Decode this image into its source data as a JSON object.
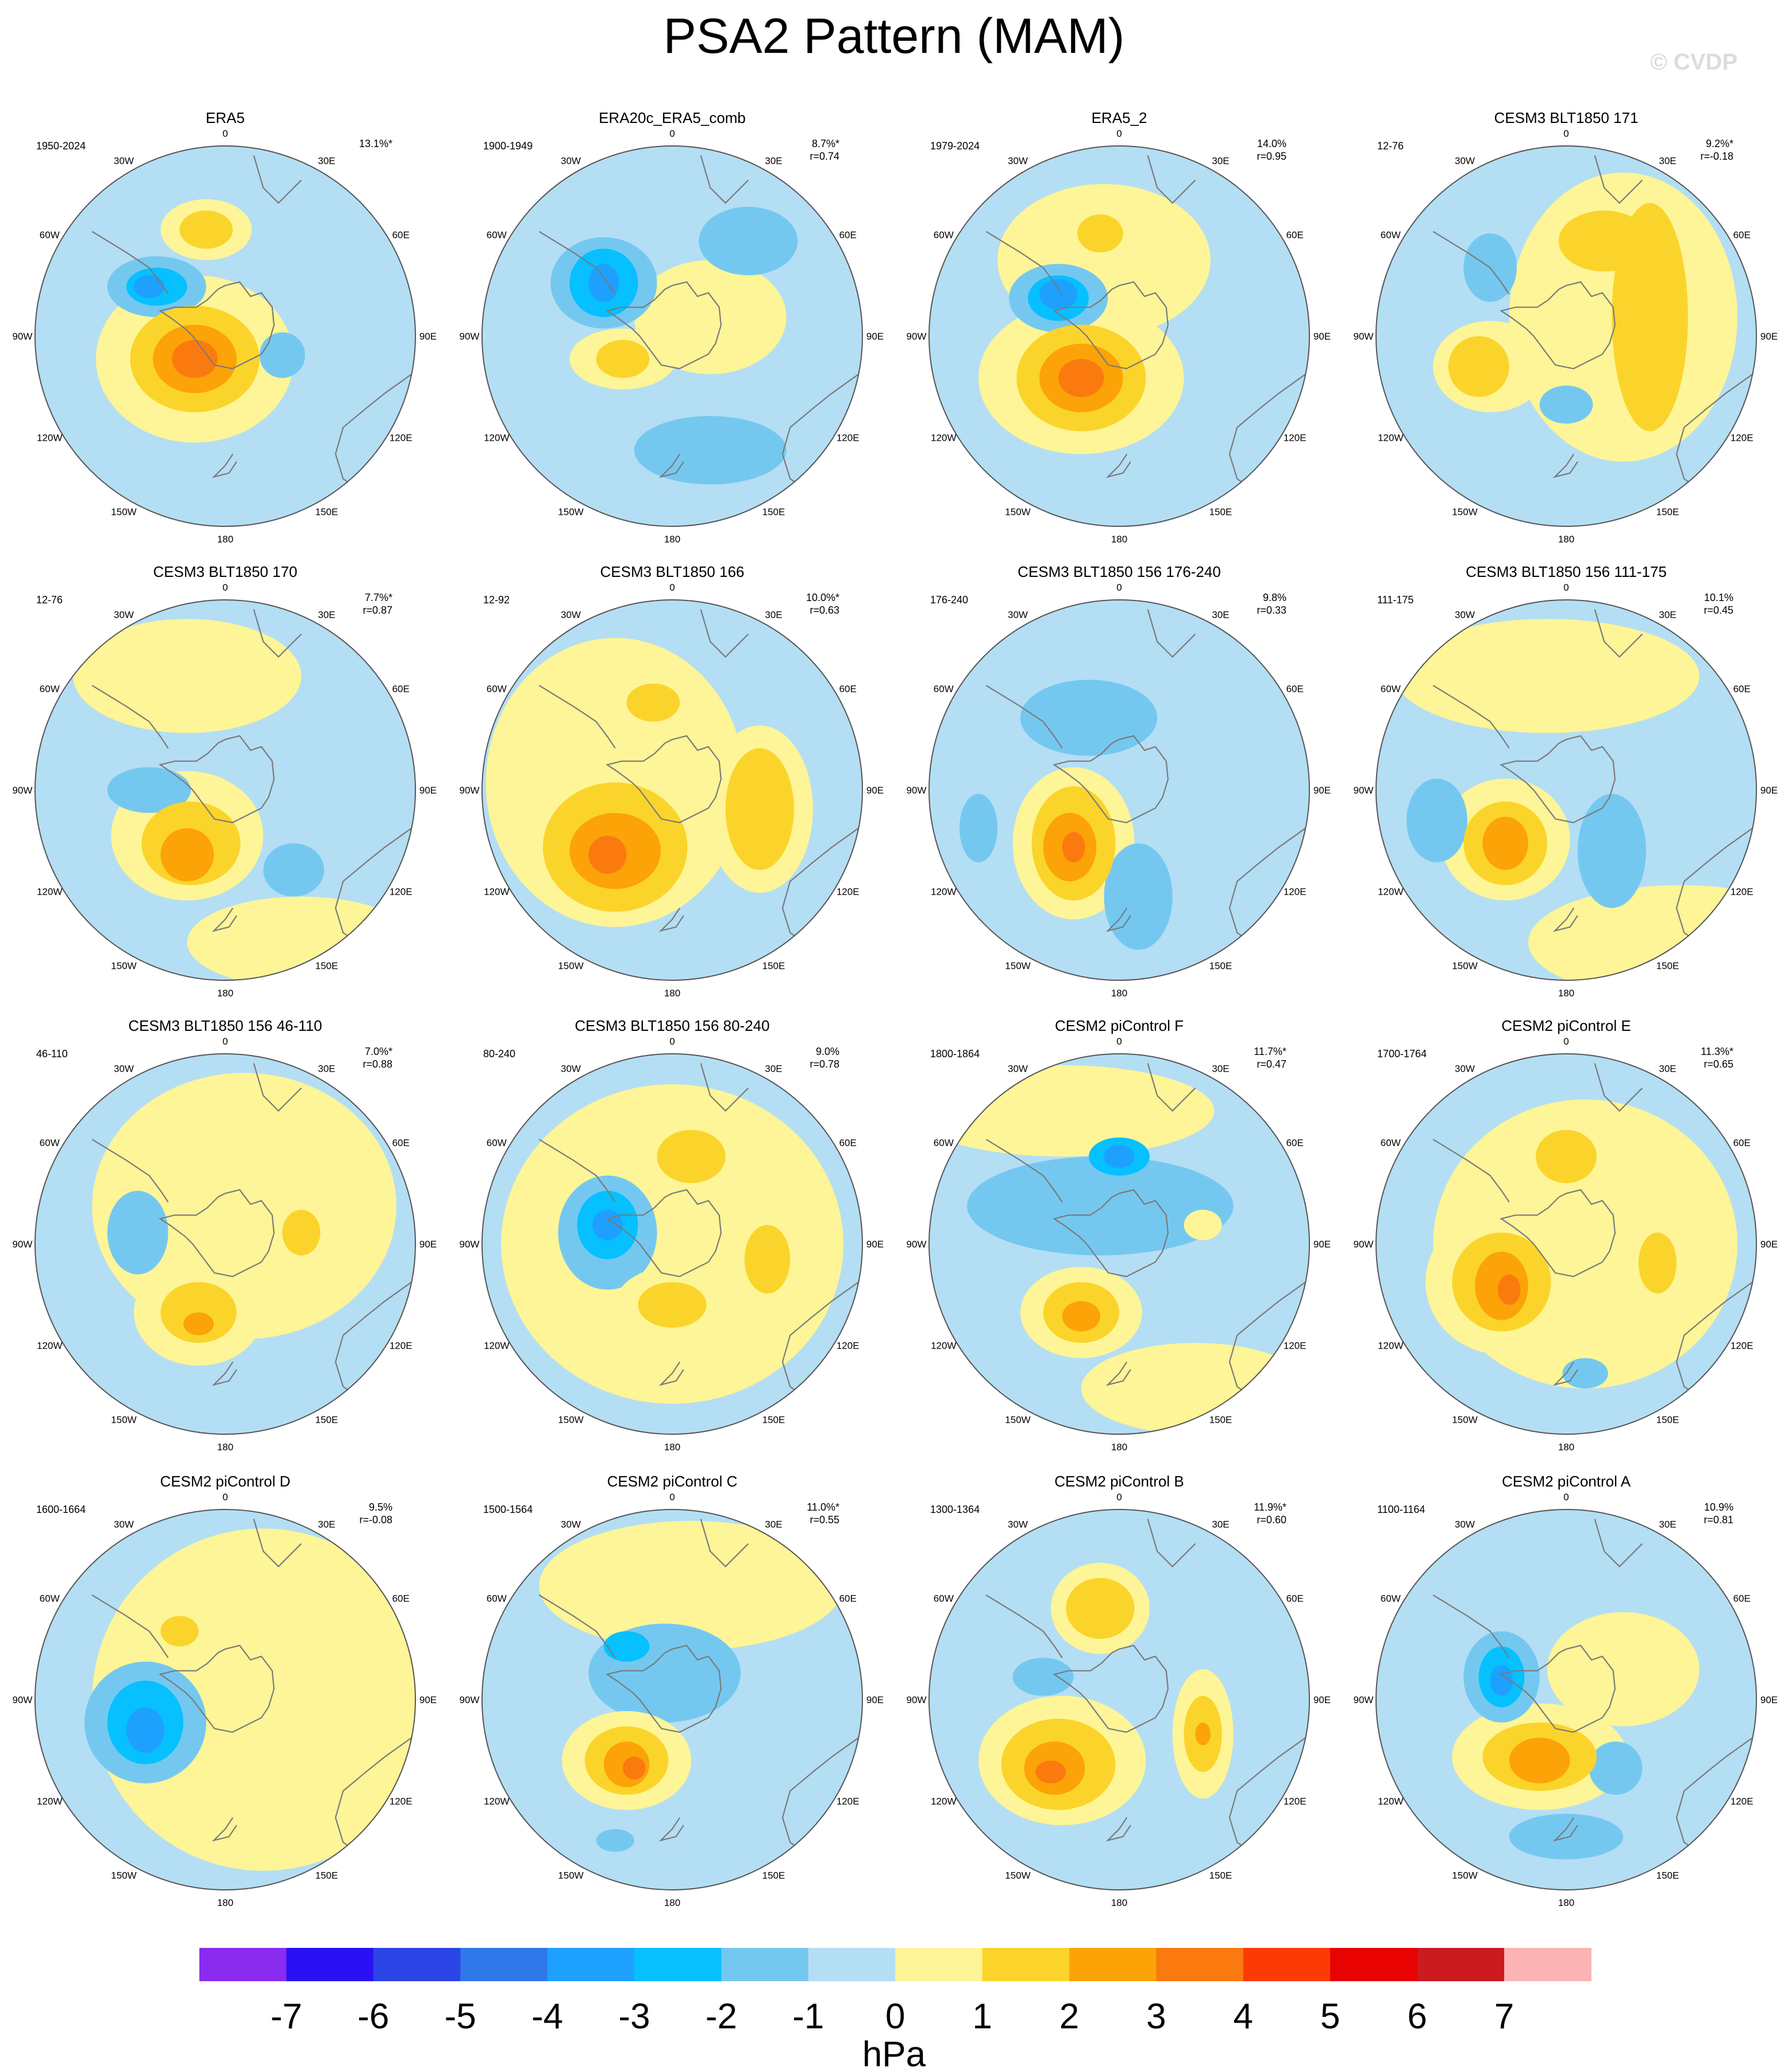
{
  "title": "PSA2 Pattern (MAM)",
  "watermark": "© CVDP",
  "units": "hPa",
  "lon_labels": [
    "0",
    "30E",
    "60E",
    "90E",
    "120E",
    "150E",
    "180",
    "150W",
    "120W",
    "90W",
    "60W",
    "30W"
  ],
  "colorbar": {
    "colors": [
      "#8a2bf0",
      "#2a10f5",
      "#2c45e6",
      "#2f78ea",
      "#1ea0ff",
      "#06c0ff",
      "#74c8f0",
      "#b4def4",
      "#fdf597",
      "#fbd42b",
      "#fba307",
      "#fb7a10",
      "#fb3a06",
      "#e80202",
      "#cb1a20",
      "#fbb3b3"
    ],
    "labels": [
      "-7",
      "-6",
      "-5",
      "-4",
      "-3",
      "-2",
      "-1",
      "0",
      "1",
      "2",
      "3",
      "4",
      "5",
      "6",
      "7"
    ]
  },
  "panels": [
    {
      "name": "ERA5",
      "years": "1950-2024",
      "pct": "13.1%*",
      "r": "",
      "blobs": [
        [
          0.42,
          0.56,
          0.26,
          0.22,
          1,
          -1
        ],
        [
          0.42,
          0.56,
          0.17,
          0.14,
          2,
          -1
        ],
        [
          0.42,
          0.56,
          0.11,
          0.09,
          3,
          -1
        ],
        [
          0.42,
          0.56,
          0.06,
          0.05,
          4,
          -1
        ],
        [
          0.32,
          0.37,
          0.13,
          0.08,
          -1,
          -1
        ],
        [
          0.32,
          0.37,
          0.08,
          0.05,
          -2,
          -1
        ],
        [
          0.3,
          0.37,
          0.04,
          0.03,
          -3,
          -1
        ],
        [
          0.45,
          0.22,
          0.12,
          0.08,
          1,
          -1
        ],
        [
          0.45,
          0.22,
          0.07,
          0.05,
          2,
          -1
        ],
        [
          0.65,
          0.55,
          0.06,
          0.06,
          -1,
          -1
        ]
      ]
    },
    {
      "name": "ERA20c_ERA5_comb",
      "years": "1900-1949",
      "pct": "8.7%*",
      "r": "r=0.74",
      "blobs": [
        [
          0.32,
          0.36,
          0.14,
          0.12,
          -1,
          -1
        ],
        [
          0.32,
          0.36,
          0.09,
          0.09,
          -2,
          -1
        ],
        [
          0.32,
          0.36,
          0.04,
          0.05,
          -3,
          -1
        ],
        [
          0.37,
          0.56,
          0.14,
          0.08,
          1,
          -1
        ],
        [
          0.37,
          0.56,
          0.07,
          0.05,
          2,
          -1
        ],
        [
          0.6,
          0.8,
          0.2,
          0.09,
          -1,
          -1
        ],
        [
          0.7,
          0.25,
          0.13,
          0.09,
          -1,
          -1
        ],
        [
          0.6,
          0.45,
          0.2,
          0.15,
          1,
          -1
        ]
      ]
    },
    {
      "name": "ERA5_2",
      "years": "1979-2024",
      "pct": "14.0%",
      "r": "r=0.95",
      "blobs": [
        [
          0.4,
          0.61,
          0.27,
          0.2,
          1,
          -1
        ],
        [
          0.4,
          0.61,
          0.17,
          0.14,
          2,
          -1
        ],
        [
          0.4,
          0.61,
          0.11,
          0.09,
          3,
          -1
        ],
        [
          0.4,
          0.61,
          0.06,
          0.05,
          4,
          -1
        ],
        [
          0.34,
          0.4,
          0.13,
          0.09,
          -1,
          -1
        ],
        [
          0.34,
          0.4,
          0.08,
          0.06,
          -2,
          -1
        ],
        [
          0.34,
          0.39,
          0.05,
          0.04,
          -3,
          -1
        ],
        [
          0.46,
          0.3,
          0.28,
          0.2,
          1,
          -1
        ],
        [
          0.45,
          0.23,
          0.06,
          0.05,
          2,
          -1
        ]
      ]
    },
    {
      "name": "CESM3 BLT1850 171",
      "years": "12-76",
      "pct": "9.2%*",
      "r": "r=-0.18",
      "blobs": [
        [
          0.65,
          0.45,
          0.3,
          0.38,
          1,
          -1
        ],
        [
          0.72,
          0.45,
          0.1,
          0.3,
          2,
          -1
        ],
        [
          0.6,
          0.25,
          0.12,
          0.08,
          2,
          -1
        ],
        [
          0.3,
          0.58,
          0.15,
          0.12,
          1,
          -1
        ],
        [
          0.27,
          0.58,
          0.08,
          0.08,
          2,
          -1
        ],
        [
          0.3,
          0.32,
          0.07,
          0.09,
          -1,
          -1
        ],
        [
          0.5,
          0.68,
          0.07,
          0.05,
          -1,
          -1
        ]
      ]
    },
    {
      "name": "CESM3 BLT1850 170",
      "years": "12-76",
      "pct": "7.7%*",
      "r": "r=0.87",
      "blobs": [
        [
          0.4,
          0.62,
          0.2,
          0.17,
          1,
          -1
        ],
        [
          0.41,
          0.64,
          0.13,
          0.11,
          2,
          -1
        ],
        [
          0.4,
          0.67,
          0.07,
          0.07,
          3,
          -1
        ],
        [
          0.3,
          0.5,
          0.11,
          0.06,
          -1,
          -1
        ],
        [
          0.68,
          0.71,
          0.08,
          0.07,
          -1,
          -1
        ],
        [
          0.4,
          0.2,
          0.3,
          0.15,
          1,
          -1
        ],
        [
          0.7,
          0.9,
          0.3,
          0.12,
          1,
          -1
        ]
      ]
    },
    {
      "name": "CESM3 BLT1850 166",
      "years": "12-92",
      "pct": "10.0%*",
      "r": "r=0.63",
      "blobs": [
        [
          0.35,
          0.48,
          0.34,
          0.38,
          1,
          -1
        ],
        [
          0.35,
          0.65,
          0.19,
          0.17,
          2,
          -1
        ],
        [
          0.35,
          0.66,
          0.12,
          0.1,
          3,
          -1
        ],
        [
          0.33,
          0.67,
          0.05,
          0.05,
          4,
          -1
        ],
        [
          0.73,
          0.55,
          0.14,
          0.22,
          1,
          -1
        ],
        [
          0.73,
          0.55,
          0.09,
          0.16,
          2,
          -1
        ],
        [
          0.45,
          0.27,
          0.07,
          0.05,
          2,
          -1
        ]
      ]
    },
    {
      "name": "CESM3 BLT1850 156 176-240",
      "years": "176-240",
      "pct": "9.8%",
      "r": "r=0.33",
      "blobs": [
        [
          0.38,
          0.64,
          0.16,
          0.2,
          1,
          -1
        ],
        [
          0.38,
          0.64,
          0.11,
          0.15,
          2,
          -1
        ],
        [
          0.37,
          0.65,
          0.07,
          0.09,
          3,
          -1
        ],
        [
          0.38,
          0.65,
          0.03,
          0.04,
          4,
          -1
        ],
        [
          0.42,
          0.31,
          0.18,
          0.1,
          -1,
          -1
        ],
        [
          0.13,
          0.6,
          0.05,
          0.09,
          -1,
          -1
        ],
        [
          0.55,
          0.78,
          0.09,
          0.14,
          -1,
          -1
        ]
      ]
    },
    {
      "name": "CESM3 BLT1850 156 111-175",
      "years": "111-175",
      "pct": "10.1%",
      "r": "r=0.45",
      "blobs": [
        [
          0.34,
          0.63,
          0.17,
          0.16,
          1,
          -1
        ],
        [
          0.34,
          0.64,
          0.11,
          0.11,
          2,
          -1
        ],
        [
          0.34,
          0.64,
          0.06,
          0.07,
          3,
          -1
        ],
        [
          0.16,
          0.58,
          0.08,
          0.11,
          -1,
          -1
        ],
        [
          0.62,
          0.66,
          0.09,
          0.15,
          -1,
          -1
        ],
        [
          0.45,
          0.2,
          0.4,
          0.15,
          1,
          -1
        ],
        [
          0.8,
          0.9,
          0.4,
          0.15,
          1,
          -1
        ]
      ]
    },
    {
      "name": "CESM3 BLT1850 156 46-110",
      "years": "46-110",
      "pct": "7.0%*",
      "r": "r=0.88",
      "blobs": [
        [
          0.43,
          0.68,
          0.17,
          0.14,
          1,
          -1
        ],
        [
          0.43,
          0.68,
          0.1,
          0.08,
          2,
          -1
        ],
        [
          0.43,
          0.71,
          0.04,
          0.03,
          3,
          -1
        ],
        [
          0.27,
          0.47,
          0.08,
          0.11,
          -1,
          -1
        ],
        [
          0.7,
          0.47,
          0.08,
          0.09,
          1,
          -1
        ],
        [
          0.7,
          0.47,
          0.05,
          0.06,
          2,
          -1
        ],
        [
          0.55,
          0.4,
          0.4,
          0.35,
          1,
          -1
        ]
      ]
    },
    {
      "name": "CESM3 BLT1850 156 80-240",
      "years": "80-240",
      "pct": "9.0%",
      "r": "r=0.78",
      "blobs": [
        [
          0.33,
          0.47,
          0.13,
          0.15,
          -1,
          -1
        ],
        [
          0.33,
          0.45,
          0.08,
          0.09,
          -2,
          -1
        ],
        [
          0.33,
          0.45,
          0.04,
          0.04,
          -3,
          -1
        ],
        [
          0.5,
          0.66,
          0.15,
          0.1,
          1,
          -1
        ],
        [
          0.5,
          0.66,
          0.09,
          0.06,
          2,
          -1
        ],
        [
          0.55,
          0.28,
          0.14,
          0.1,
          1,
          -1
        ],
        [
          0.55,
          0.27,
          0.09,
          0.07,
          2,
          -1
        ],
        [
          0.75,
          0.54,
          0.1,
          0.15,
          1,
          -1
        ],
        [
          0.75,
          0.54,
          0.06,
          0.09,
          2,
          -1
        ],
        [
          0.5,
          0.5,
          0.45,
          0.42,
          1,
          -1
        ]
      ]
    },
    {
      "name": "CESM2 piControl F",
      "years": "1800-1864",
      "pct": "11.7%*",
      "r": "r=0.47",
      "blobs": [
        [
          0.4,
          0.68,
          0.16,
          0.12,
          1,
          -1
        ],
        [
          0.4,
          0.68,
          0.1,
          0.08,
          2,
          -1
        ],
        [
          0.4,
          0.69,
          0.05,
          0.04,
          3,
          -1
        ],
        [
          0.45,
          0.4,
          0.35,
          0.13,
          -1,
          -0.5
        ],
        [
          0.5,
          0.27,
          0.08,
          0.05,
          -2,
          -1
        ],
        [
          0.5,
          0.27,
          0.04,
          0.03,
          -3,
          -1
        ],
        [
          0.72,
          0.45,
          0.05,
          0.04,
          1,
          -1
        ],
        [
          0.35,
          0.15,
          0.4,
          0.12,
          1,
          -1
        ],
        [
          0.7,
          0.88,
          0.3,
          0.12,
          1,
          -1
        ]
      ]
    },
    {
      "name": "CESM2 piControl E",
      "years": "1700-1764",
      "pct": "11.3%*",
      "r": "r=0.65",
      "blobs": [
        [
          0.33,
          0.6,
          0.2,
          0.19,
          1,
          -1
        ],
        [
          0.33,
          0.6,
          0.13,
          0.13,
          2,
          -1
        ],
        [
          0.33,
          0.61,
          0.07,
          0.09,
          3,
          -1
        ],
        [
          0.35,
          0.62,
          0.03,
          0.04,
          4,
          -1
        ],
        [
          0.5,
          0.28,
          0.13,
          0.1,
          1,
          -1
        ],
        [
          0.5,
          0.27,
          0.08,
          0.07,
          2,
          -1
        ],
        [
          0.74,
          0.55,
          0.08,
          0.13,
          1,
          -1
        ],
        [
          0.74,
          0.55,
          0.05,
          0.08,
          2,
          -1
        ],
        [
          0.55,
          0.84,
          0.06,
          0.04,
          -1,
          -1
        ],
        [
          0.55,
          0.5,
          0.4,
          0.38,
          1,
          -1
        ]
      ]
    },
    {
      "name": "CESM2 piControl D",
      "years": "1600-1664",
      "pct": "9.5%",
      "r": "r=-0.08",
      "blobs": [
        [
          0.29,
          0.56,
          0.16,
          0.16,
          -1,
          -1
        ],
        [
          0.29,
          0.56,
          0.1,
          0.11,
          -2,
          -1
        ],
        [
          0.29,
          0.58,
          0.05,
          0.06,
          -3,
          -1
        ],
        [
          0.38,
          0.33,
          0.12,
          0.07,
          1,
          -1
        ],
        [
          0.38,
          0.32,
          0.05,
          0.04,
          2,
          -1
        ],
        [
          0.53,
          0.46,
          0.08,
          0.08,
          1,
          -1
        ],
        [
          0.53,
          0.68,
          0.09,
          0.05,
          1,
          -1
        ],
        [
          0.6,
          0.5,
          0.45,
          0.45,
          1,
          -1
        ]
      ]
    },
    {
      "name": "CESM2 piControl C",
      "years": "1500-1564",
      "pct": "11.0%*",
      "r": "r=0.55",
      "blobs": [
        [
          0.38,
          0.66,
          0.17,
          0.13,
          1,
          -1
        ],
        [
          0.38,
          0.66,
          0.11,
          0.09,
          2,
          -1
        ],
        [
          0.38,
          0.67,
          0.06,
          0.06,
          3,
          -1
        ],
        [
          0.4,
          0.68,
          0.03,
          0.03,
          4,
          -1
        ],
        [
          0.48,
          0.43,
          0.2,
          0.13,
          -1,
          -0.6
        ],
        [
          0.38,
          0.36,
          0.06,
          0.04,
          -2,
          -1
        ],
        [
          0.35,
          0.87,
          0.05,
          0.03,
          -1,
          -1
        ],
        [
          0.55,
          0.2,
          0.4,
          0.17,
          1,
          -1
        ]
      ]
    },
    {
      "name": "CESM2 piControl B",
      "years": "1300-1364",
      "pct": "11.9%*",
      "r": "r=0.60",
      "blobs": [
        [
          0.35,
          0.66,
          0.22,
          0.17,
          1,
          -1
        ],
        [
          0.34,
          0.67,
          0.15,
          0.12,
          2,
          -1
        ],
        [
          0.33,
          0.68,
          0.08,
          0.07,
          3,
          -1
        ],
        [
          0.32,
          0.69,
          0.04,
          0.03,
          4,
          -1
        ],
        [
          0.72,
          0.59,
          0.08,
          0.17,
          1,
          -1
        ],
        [
          0.72,
          0.59,
          0.05,
          0.1,
          2,
          -1
        ],
        [
          0.72,
          0.59,
          0.02,
          0.03,
          3,
          -1
        ],
        [
          0.45,
          0.26,
          0.13,
          0.12,
          1,
          -1
        ],
        [
          0.45,
          0.26,
          0.09,
          0.08,
          2,
          -1
        ],
        [
          0.3,
          0.44,
          0.08,
          0.05,
          -1,
          -1
        ]
      ]
    },
    {
      "name": "CESM2 piControl A",
      "years": "1100-1164",
      "pct": "10.9%",
      "r": "r=0.81",
      "blobs": [
        [
          0.43,
          0.65,
          0.23,
          0.14,
          1,
          -1
        ],
        [
          0.43,
          0.65,
          0.15,
          0.09,
          2,
          -1
        ],
        [
          0.43,
          0.66,
          0.08,
          0.06,
          3,
          -1
        ],
        [
          0.33,
          0.44,
          0.1,
          0.12,
          -1,
          -1
        ],
        [
          0.33,
          0.44,
          0.06,
          0.08,
          -2,
          -1
        ],
        [
          0.33,
          0.45,
          0.03,
          0.04,
          -3,
          -1
        ],
        [
          0.63,
          0.68,
          0.07,
          0.07,
          -1,
          -1
        ],
        [
          0.5,
          0.86,
          0.15,
          0.06,
          -1,
          -1
        ],
        [
          0.65,
          0.42,
          0.2,
          0.15,
          1,
          -1
        ]
      ]
    }
  ]
}
